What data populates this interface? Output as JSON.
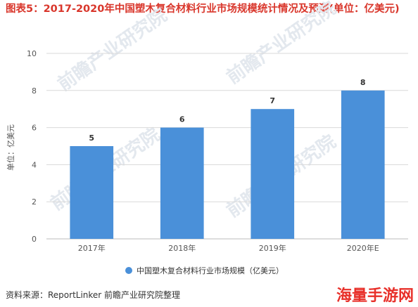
{
  "chart_data": {
    "type": "bar",
    "title": "图表5：2017-2020年中国塑木复合材料行业市场规模统计情况及预测(单位：亿美元)",
    "categories": [
      "2017年",
      "2018年",
      "2019年",
      "2020年E"
    ],
    "series": [
      {
        "name": "中国塑木复合材料行业市场规模（亿美元）",
        "values": [
          5,
          6,
          7,
          8
        ]
      }
    ],
    "data_labels": [
      "5",
      "6",
      "7",
      "8"
    ],
    "ylabel": "单位：亿美元",
    "xlabel": "",
    "ylim": [
      0,
      10
    ],
    "yticks": [
      "0",
      "2",
      "4",
      "6",
      "8",
      "10"
    ],
    "grid": true,
    "legend": "bottom",
    "colors": {
      "bar": "#4a90d9",
      "title": "#d9362b",
      "grid": "#d9d9d9"
    }
  },
  "source": "资料来源：ReportLinker 前瞻产业研究院整理",
  "watermark_logo": "海量手游网",
  "background_watermark": "前瞻产业研究院"
}
